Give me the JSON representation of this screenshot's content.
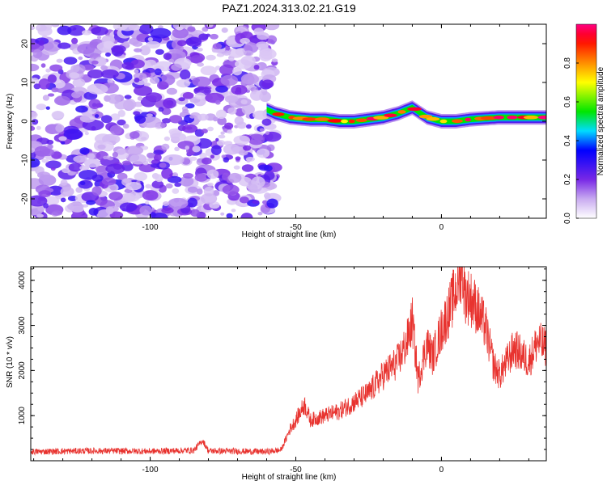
{
  "title": "PAZ1.2024.313.02.21.G19",
  "chart_data": [
    {
      "type": "heatmap",
      "xlabel": "Height of straight line (km)",
      "ylabel": "Frequency (Hz)",
      "xlim": [
        -141,
        36
      ],
      "ylim": [
        -25,
        25
      ],
      "xticks": [
        -100,
        -50,
        0
      ],
      "yticks": [
        -20,
        -10,
        0,
        10,
        20
      ],
      "colorbar": {
        "label": "Normalized spectral amplitude",
        "range": [
          0,
          1
        ],
        "ticks": [
          "0.0",
          "0.2",
          "0.4",
          "0.6",
          "0.8"
        ]
      },
      "noise_region": {
        "x_from": -141,
        "x_to": -57
      },
      "ridge": {
        "x": [
          -60,
          -57,
          -52,
          -45,
          -40,
          -35,
          -30,
          -25,
          -20,
          -15,
          -10,
          -5,
          0,
          5,
          10,
          20,
          30,
          36
        ],
        "y": [
          3,
          2,
          1,
          0.5,
          0.5,
          0,
          0,
          0.5,
          1,
          2,
          3.5,
          1,
          0,
          0,
          0.5,
          1,
          1,
          1
        ]
      },
      "grid": false
    },
    {
      "type": "line",
      "xlabel": "Height of straight line (km)",
      "ylabel": "SNR (10 * v/v)",
      "xlim": [
        -141,
        36
      ],
      "ylim": [
        0,
        4300
      ],
      "xticks": [
        -100,
        -50,
        0
      ],
      "yticks": [
        1000,
        2000,
        3000,
        4000
      ],
      "color": "#e8332f",
      "series": [
        {
          "x": [
            -141,
            -120,
            -100,
            -85,
            -82,
            -80,
            -70,
            -60,
            -55,
            -52,
            -50,
            -47,
            -45,
            -40,
            -35,
            -30,
            -25,
            -20,
            -15,
            -12,
            -10,
            -8,
            -5,
            -3,
            0,
            3,
            5,
            7,
            8,
            10,
            12,
            14,
            15,
            18,
            20,
            25,
            30,
            33,
            36
          ],
          "y": [
            200,
            220,
            210,
            230,
            450,
            220,
            210,
            200,
            240,
            700,
            900,
            1250,
            900,
            1000,
            1100,
            1300,
            1500,
            1900,
            2200,
            2600,
            3100,
            1800,
            2600,
            2300,
            2900,
            3400,
            3800,
            4300,
            3700,
            3600,
            3400,
            3100,
            3000,
            2100,
            1900,
            2500,
            2200,
            2650,
            2500
          ]
        }
      ],
      "grid": false
    }
  ]
}
